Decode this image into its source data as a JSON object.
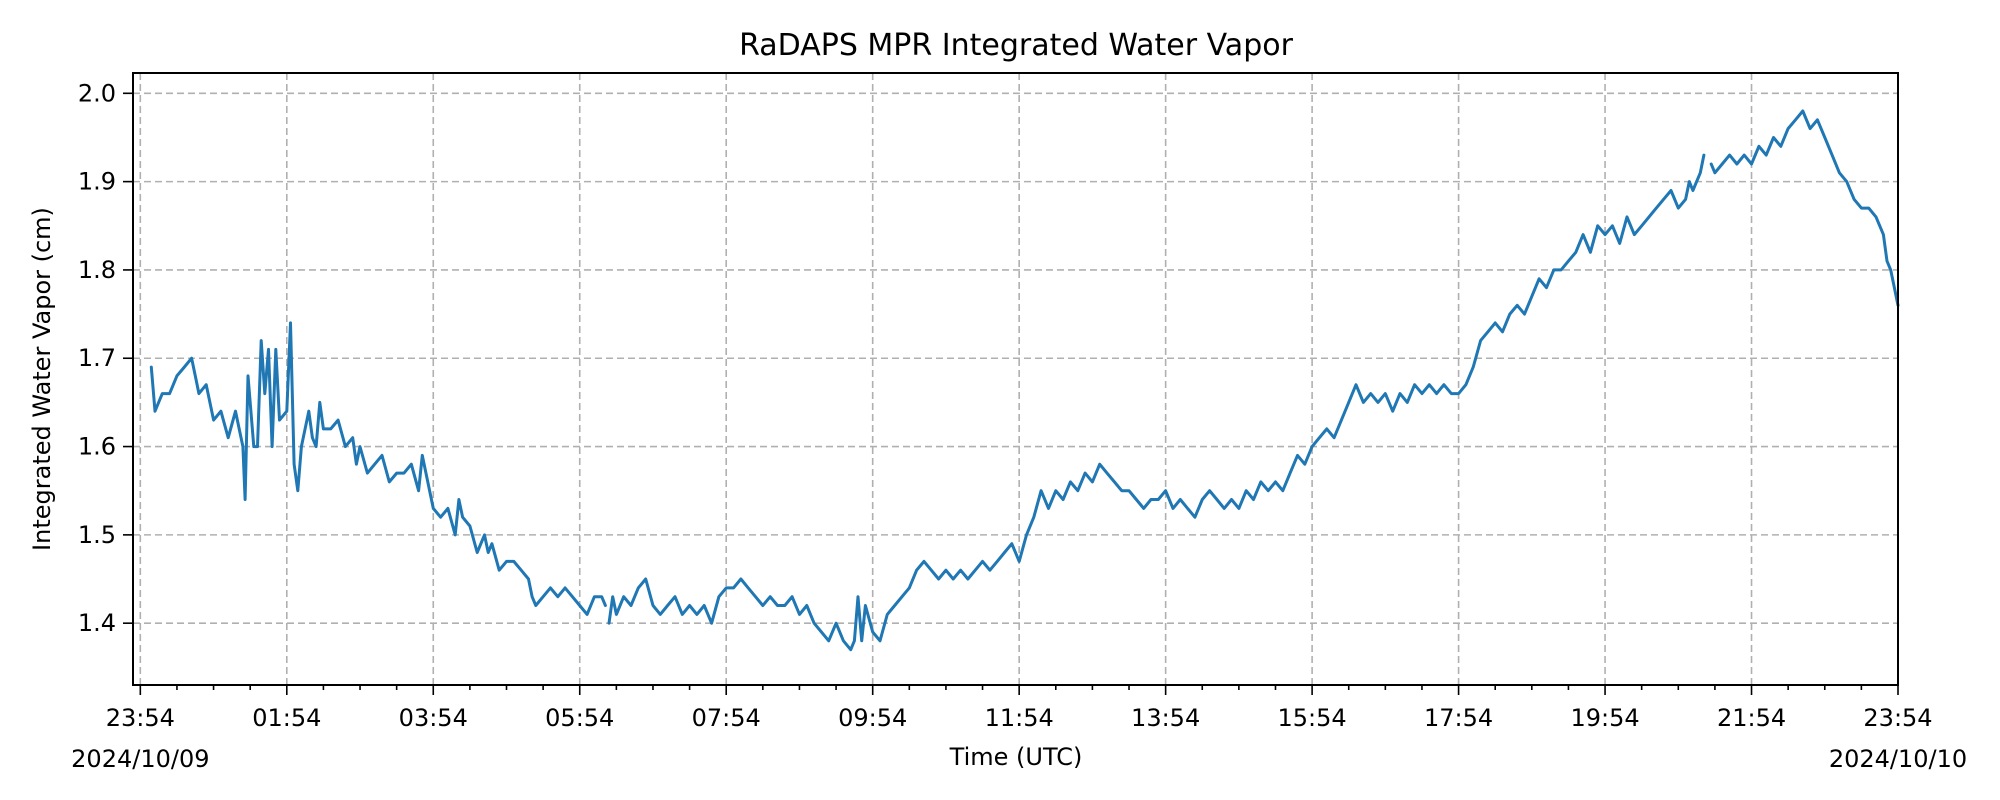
{
  "chart_data": {
    "type": "line",
    "title": "RaDAPS MPR Integrated Water Vapor",
    "xlabel": "Time (UTC)",
    "ylabel": "Integrated Water Vapor (cm)",
    "x_unit": "hours (UTC)",
    "xlim": [
      -0.1,
      24.0
    ],
    "ylim": [
      1.33,
      2.023
    ],
    "grid": true,
    "x_major_ticks": [
      {
        "x": 0,
        "label": "23:54"
      },
      {
        "x": 2,
        "label": "01:54"
      },
      {
        "x": 4,
        "label": "03:54"
      },
      {
        "x": 6,
        "label": "05:54"
      },
      {
        "x": 8,
        "label": "07:54"
      },
      {
        "x": 10,
        "label": "09:54"
      },
      {
        "x": 12,
        "label": "11:54"
      },
      {
        "x": 14,
        "label": "13:54"
      },
      {
        "x": 16,
        "label": "15:54"
      },
      {
        "x": 18,
        "label": "17:54"
      },
      {
        "x": 20,
        "label": "19:54"
      },
      {
        "x": 22,
        "label": "21:54"
      },
      {
        "x": 24,
        "label": "23:54"
      }
    ],
    "x_minor_ticks": [
      0.5,
      1,
      1.5,
      2.5,
      3,
      3.5,
      4.5,
      5,
      5.5,
      6.5,
      7,
      7.5,
      8.5,
      9,
      9.5,
      10.5,
      11,
      11.5,
      12.5,
      13,
      13.5,
      14.5,
      15,
      15.5,
      16.5,
      17,
      17.5,
      18.5,
      19,
      19.5,
      20.5,
      21,
      21.5,
      22.5,
      23,
      23.5
    ],
    "date_labels": [
      {
        "x": 0,
        "label": "2024/10/09"
      },
      {
        "x": 24,
        "label": "2024/10/10"
      }
    ],
    "y_ticks": [
      1.4,
      1.5,
      1.6,
      1.7,
      1.8,
      1.9,
      2.0
    ],
    "y_tick_labels": [
      "1.4",
      "1.5",
      "1.6",
      "1.7",
      "1.8",
      "1.9",
      "2.0"
    ],
    "series_color": "#1f77b4",
    "series": [
      {
        "segments": [
          [
            [
              0.15,
              1.69
            ],
            [
              0.2,
              1.64
            ],
            [
              0.3,
              1.66
            ],
            [
              0.4,
              1.66
            ],
            [
              0.5,
              1.68
            ],
            [
              0.6,
              1.69
            ],
            [
              0.7,
              1.7
            ],
            [
              0.75,
              1.68
            ],
            [
              0.8,
              1.66
            ],
            [
              0.9,
              1.67
            ],
            [
              1.0,
              1.63
            ],
            [
              1.1,
              1.64
            ],
            [
              1.2,
              1.61
            ],
            [
              1.3,
              1.64
            ],
            [
              1.35,
              1.62
            ],
            [
              1.4,
              1.6
            ],
            [
              1.43,
              1.54
            ],
            [
              1.47,
              1.68
            ],
            [
              1.55,
              1.6
            ],
            [
              1.6,
              1.6
            ],
            [
              1.65,
              1.72
            ],
            [
              1.7,
              1.66
            ],
            [
              1.75,
              1.71
            ],
            [
              1.8,
              1.6
            ],
            [
              1.85,
              1.71
            ],
            [
              1.9,
              1.63
            ],
            [
              2.0,
              1.64
            ],
            [
              2.05,
              1.74
            ],
            [
              2.1,
              1.58
            ],
            [
              2.15,
              1.55
            ],
            [
              2.2,
              1.6
            ],
            [
              2.3,
              1.64
            ],
            [
              2.35,
              1.61
            ],
            [
              2.4,
              1.6
            ],
            [
              2.45,
              1.65
            ],
            [
              2.5,
              1.62
            ],
            [
              2.6,
              1.62
            ],
            [
              2.7,
              1.63
            ],
            [
              2.8,
              1.6
            ],
            [
              2.9,
              1.61
            ],
            [
              2.95,
              1.58
            ],
            [
              3.0,
              1.6
            ],
            [
              3.1,
              1.57
            ],
            [
              3.2,
              1.58
            ],
            [
              3.3,
              1.59
            ],
            [
              3.4,
              1.56
            ],
            [
              3.5,
              1.57
            ],
            [
              3.6,
              1.57
            ],
            [
              3.7,
              1.58
            ],
            [
              3.8,
              1.55
            ],
            [
              3.85,
              1.59
            ],
            [
              3.95,
              1.55
            ],
            [
              4.0,
              1.53
            ],
            [
              4.1,
              1.52
            ],
            [
              4.2,
              1.53
            ],
            [
              4.3,
              1.5
            ],
            [
              4.35,
              1.54
            ],
            [
              4.4,
              1.52
            ],
            [
              4.5,
              1.51
            ],
            [
              4.6,
              1.48
            ],
            [
              4.7,
              1.5
            ],
            [
              4.75,
              1.48
            ],
            [
              4.8,
              1.49
            ],
            [
              4.9,
              1.46
            ],
            [
              5.0,
              1.47
            ],
            [
              5.1,
              1.47
            ],
            [
              5.2,
              1.46
            ],
            [
              5.3,
              1.45
            ],
            [
              5.35,
              1.43
            ],
            [
              5.4,
              1.42
            ],
            [
              5.5,
              1.43
            ],
            [
              5.6,
              1.44
            ],
            [
              5.7,
              1.43
            ],
            [
              5.8,
              1.44
            ],
            [
              5.9,
              1.43
            ],
            [
              6.0,
              1.42
            ],
            [
              6.1,
              1.41
            ],
            [
              6.2,
              1.43
            ],
            [
              6.3,
              1.43
            ],
            [
              6.35,
              1.42
            ]
          ],
          [
            [
              6.4,
              1.4
            ],
            [
              6.45,
              1.43
            ],
            [
              6.5,
              1.41
            ],
            [
              6.6,
              1.43
            ],
            [
              6.7,
              1.42
            ],
            [
              6.8,
              1.44
            ],
            [
              6.9,
              1.45
            ],
            [
              7.0,
              1.42
            ],
            [
              7.1,
              1.41
            ],
            [
              7.2,
              1.42
            ],
            [
              7.3,
              1.43
            ],
            [
              7.4,
              1.41
            ],
            [
              7.5,
              1.42
            ],
            [
              7.6,
              1.41
            ],
            [
              7.7,
              1.42
            ],
            [
              7.8,
              1.4
            ],
            [
              7.9,
              1.43
            ],
            [
              8.0,
              1.44
            ],
            [
              8.1,
              1.44
            ],
            [
              8.2,
              1.45
            ],
            [
              8.3,
              1.44
            ],
            [
              8.4,
              1.43
            ],
            [
              8.5,
              1.42
            ],
            [
              8.6,
              1.43
            ],
            [
              8.7,
              1.42
            ],
            [
              8.8,
              1.42
            ],
            [
              8.9,
              1.43
            ],
            [
              9.0,
              1.41
            ],
            [
              9.1,
              1.42
            ],
            [
              9.2,
              1.4
            ],
            [
              9.3,
              1.39
            ],
            [
              9.4,
              1.38
            ],
            [
              9.5,
              1.4
            ],
            [
              9.6,
              1.38
            ],
            [
              9.7,
              1.37
            ],
            [
              9.75,
              1.38
            ],
            [
              9.8,
              1.43
            ],
            [
              9.85,
              1.38
            ],
            [
              9.9,
              1.42
            ],
            [
              10.0,
              1.39
            ],
            [
              10.1,
              1.38
            ],
            [
              10.2,
              1.41
            ],
            [
              10.3,
              1.42
            ],
            [
              10.4,
              1.43
            ],
            [
              10.5,
              1.44
            ],
            [
              10.6,
              1.46
            ],
            [
              10.7,
              1.47
            ],
            [
              10.8,
              1.46
            ],
            [
              10.9,
              1.45
            ],
            [
              11.0,
              1.46
            ],
            [
              11.1,
              1.45
            ],
            [
              11.2,
              1.46
            ],
            [
              11.3,
              1.45
            ],
            [
              11.4,
              1.46
            ],
            [
              11.5,
              1.47
            ],
            [
              11.6,
              1.46
            ],
            [
              11.7,
              1.47
            ],
            [
              11.8,
              1.48
            ],
            [
              11.9,
              1.49
            ],
            [
              12.0,
              1.47
            ],
            [
              12.1,
              1.5
            ],
            [
              12.2,
              1.52
            ],
            [
              12.3,
              1.55
            ],
            [
              12.4,
              1.53
            ],
            [
              12.5,
              1.55
            ],
            [
              12.6,
              1.54
            ],
            [
              12.7,
              1.56
            ],
            [
              12.8,
              1.55
            ],
            [
              12.9,
              1.57
            ],
            [
              13.0,
              1.56
            ],
            [
              13.1,
              1.58
            ],
            [
              13.2,
              1.57
            ],
            [
              13.3,
              1.56
            ],
            [
              13.4,
              1.55
            ],
            [
              13.5,
              1.55
            ],
            [
              13.6,
              1.54
            ],
            [
              13.7,
              1.53
            ],
            [
              13.8,
              1.54
            ],
            [
              13.9,
              1.54
            ],
            [
              14.0,
              1.55
            ],
            [
              14.1,
              1.53
            ],
            [
              14.2,
              1.54
            ],
            [
              14.3,
              1.53
            ],
            [
              14.4,
              1.52
            ],
            [
              14.5,
              1.54
            ],
            [
              14.6,
              1.55
            ],
            [
              14.7,
              1.54
            ],
            [
              14.8,
              1.53
            ],
            [
              14.9,
              1.54
            ],
            [
              15.0,
              1.53
            ],
            [
              15.1,
              1.55
            ],
            [
              15.2,
              1.54
            ],
            [
              15.3,
              1.56
            ],
            [
              15.4,
              1.55
            ],
            [
              15.5,
              1.56
            ],
            [
              15.6,
              1.55
            ],
            [
              15.7,
              1.57
            ],
            [
              15.8,
              1.59
            ],
            [
              15.9,
              1.58
            ],
            [
              16.0,
              1.6
            ],
            [
              16.1,
              1.61
            ],
            [
              16.2,
              1.62
            ],
            [
              16.3,
              1.61
            ],
            [
              16.4,
              1.63
            ],
            [
              16.5,
              1.65
            ],
            [
              16.6,
              1.67
            ],
            [
              16.7,
              1.65
            ],
            [
              16.8,
              1.66
            ],
            [
              16.9,
              1.65
            ],
            [
              17.0,
              1.66
            ],
            [
              17.1,
              1.64
            ],
            [
              17.2,
              1.66
            ],
            [
              17.3,
              1.65
            ],
            [
              17.4,
              1.67
            ],
            [
              17.5,
              1.66
            ],
            [
              17.6,
              1.67
            ],
            [
              17.7,
              1.66
            ],
            [
              17.8,
              1.67
            ],
            [
              17.9,
              1.66
            ],
            [
              18.0,
              1.66
            ],
            [
              18.1,
              1.67
            ],
            [
              18.2,
              1.69
            ],
            [
              18.3,
              1.72
            ],
            [
              18.4,
              1.73
            ],
            [
              18.5,
              1.74
            ],
            [
              18.6,
              1.73
            ],
            [
              18.7,
              1.75
            ],
            [
              18.8,
              1.76
            ],
            [
              18.9,
              1.75
            ],
            [
              19.0,
              1.77
            ],
            [
              19.1,
              1.79
            ],
            [
              19.2,
              1.78
            ],
            [
              19.3,
              1.8
            ],
            [
              19.4,
              1.8
            ],
            [
              19.5,
              1.81
            ],
            [
              19.6,
              1.82
            ],
            [
              19.7,
              1.84
            ],
            [
              19.8,
              1.82
            ],
            [
              19.9,
              1.85
            ],
            [
              20.0,
              1.84
            ],
            [
              20.1,
              1.85
            ],
            [
              20.2,
              1.83
            ],
            [
              20.3,
              1.86
            ],
            [
              20.4,
              1.84
            ],
            [
              20.5,
              1.85
            ],
            [
              20.6,
              1.86
            ],
            [
              20.7,
              1.87
            ],
            [
              20.8,
              1.88
            ],
            [
              20.9,
              1.89
            ],
            [
              21.0,
              1.87
            ],
            [
              21.1,
              1.88
            ],
            [
              21.15,
              1.9
            ],
            [
              21.2,
              1.89
            ],
            [
              21.3,
              1.91
            ],
            [
              21.35,
              1.93
            ]
          ],
          [
            [
              21.45,
              1.92
            ],
            [
              21.5,
              1.91
            ],
            [
              21.6,
              1.92
            ],
            [
              21.7,
              1.93
            ],
            [
              21.8,
              1.92
            ],
            [
              21.9,
              1.93
            ],
            [
              22.0,
              1.92
            ],
            [
              22.1,
              1.94
            ],
            [
              22.2,
              1.93
            ],
            [
              22.3,
              1.95
            ],
            [
              22.4,
              1.94
            ],
            [
              22.5,
              1.96
            ],
            [
              22.6,
              1.97
            ],
            [
              22.7,
              1.98
            ],
            [
              22.8,
              1.96
            ],
            [
              22.9,
              1.97
            ],
            [
              23.0,
              1.95
            ],
            [
              23.1,
              1.93
            ],
            [
              23.2,
              1.91
            ],
            [
              23.3,
              1.9
            ],
            [
              23.4,
              1.88
            ],
            [
              23.5,
              1.87
            ],
            [
              23.6,
              1.87
            ],
            [
              23.7,
              1.86
            ],
            [
              23.8,
              1.84
            ],
            [
              23.85,
              1.81
            ],
            [
              23.9,
              1.8
            ],
            [
              24.0,
              1.76
            ]
          ]
        ]
      }
    ]
  }
}
